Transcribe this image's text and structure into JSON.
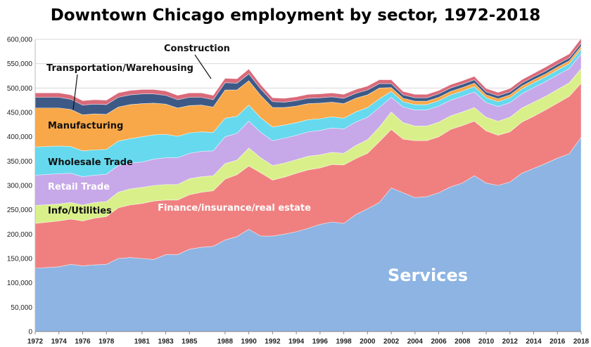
{
  "chart_data": {
    "type": "area",
    "title": "Downtown Chicago employment by sector, 1972-2018",
    "xlabel": "",
    "ylabel": "",
    "ylim": [
      0,
      600000
    ],
    "y_ticks": [
      "0",
      "50,000",
      "100,000",
      "150,000",
      "200,000",
      "250,000",
      "300,000",
      "350,000",
      "400,000",
      "450,000",
      "500,000",
      "550,000",
      "600,000"
    ],
    "x_tick_labels": [
      "1972",
      "1974",
      "1976",
      "1978",
      "1981",
      "1983",
      "1985",
      "1988",
      "1990",
      "1992",
      "1994",
      "1996",
      "1998",
      "2000",
      "2002",
      "2004",
      "2006",
      "2008",
      "2010",
      "2012",
      "2014",
      "2016",
      "2018"
    ],
    "grid": true,
    "stacked": true,
    "x": [
      1972,
      1974,
      1975,
      1976,
      1977,
      1978,
      1979,
      1980,
      1981,
      1982,
      1983,
      1984,
      1985,
      1986,
      1987,
      1988,
      1989,
      1990,
      1991,
      1992,
      1993,
      1994,
      1995,
      1996,
      1997,
      1998,
      1999,
      2000,
      2001,
      2002,
      2003,
      2004,
      2005,
      2006,
      2007,
      2008,
      2009,
      2010,
      2011,
      2012,
      2013,
      2014,
      2015,
      2016,
      2017,
      2018
    ],
    "series": [
      {
        "name": "Services",
        "color": "#8db4e2",
        "values": [
          130000,
          133000,
          138000,
          135000,
          137000,
          138000,
          150000,
          152000,
          150000,
          148000,
          158000,
          158000,
          169000,
          173000,
          175000,
          188000,
          195000,
          210000,
          196000,
          196000,
          200000,
          205000,
          212000,
          220000,
          225000,
          222000,
          240000,
          252000,
          265000,
          295000,
          285000,
          275000,
          277000,
          285000,
          297000,
          305000,
          320000,
          305000,
          300000,
          307000,
          325000,
          335000,
          345000,
          356000,
          365000,
          399000
        ]
      },
      {
        "name": "Finance/insurance/real estate",
        "color": "#f08080",
        "values": [
          92000,
          94000,
          93000,
          92000,
          96000,
          98000,
          104000,
          108000,
          113000,
          120000,
          112000,
          112000,
          112000,
          113000,
          114000,
          125000,
          127000,
          130000,
          130000,
          115000,
          117000,
          120000,
          120000,
          116000,
          118000,
          120000,
          115000,
          114000,
          125000,
          120000,
          110000,
          117000,
          115000,
          115000,
          118000,
          118000,
          112000,
          107000,
          103000,
          103000,
          105000,
          107000,
          110000,
          113000,
          118000,
          111000
        ]
      },
      {
        "name": "Info/Utilities",
        "color": "#d9f08a",
        "values": [
          37000,
          35000,
          34000,
          33000,
          32000,
          31000,
          32000,
          33000,
          33000,
          32000,
          32000,
          32000,
          33000,
          32000,
          31000,
          32000,
          30000,
          37000,
          31000,
          30000,
          29000,
          28000,
          28000,
          27000,
          25000,
          24000,
          27000,
          28000,
          30000,
          36000,
          34000,
          30000,
          30000,
          30000,
          28000,
          28000,
          28000,
          28000,
          29000,
          30000,
          29000,
          29000,
          28000,
          28000,
          28000,
          30000
        ]
      },
      {
        "name": "Retail Trade",
        "color": "#c7a8e8",
        "values": [
          62000,
          62000,
          60000,
          58000,
          56000,
          56000,
          55000,
          53000,
          52000,
          54000,
          55000,
          55000,
          52000,
          52000,
          51000,
          55000,
          55000,
          55000,
          52000,
          51000,
          51000,
          50000,
          50000,
          50000,
          50000,
          50000,
          48000,
          46000,
          40000,
          30000,
          32000,
          33000,
          33000,
          33000,
          32000,
          32000,
          32000,
          30000,
          30000,
          30000,
          29000,
          30000,
          30000,
          30000,
          29000,
          30000
        ]
      },
      {
        "name": "Wholesale Trade",
        "color": "#66d9ee",
        "values": [
          58000,
          57000,
          55000,
          53000,
          52000,
          51000,
          50000,
          50000,
          52000,
          50000,
          48000,
          44000,
          42000,
          40000,
          38000,
          38000,
          35000,
          33000,
          30000,
          28000,
          27000,
          26000,
          25000,
          24000,
          23000,
          22000,
          21000,
          20000,
          18000,
          12000,
          11000,
          11000,
          11000,
          11000,
          11000,
          11000,
          11000,
          10000,
          10000,
          10000,
          10000,
          10000,
          10000,
          10000,
          10000,
          10000
        ]
      },
      {
        "name": "Manufacturing",
        "color": "#f8a848",
        "values": [
          80000,
          78000,
          76000,
          74000,
          74000,
          72000,
          70000,
          70000,
          68000,
          65000,
          62000,
          58000,
          56000,
          55000,
          52000,
          58000,
          54000,
          50000,
          46000,
          40000,
          36000,
          34000,
          33000,
          32000,
          30000,
          30000,
          28000,
          26000,
          22000,
          8000,
          7000,
          7000,
          7000,
          7000,
          7000,
          7000,
          7000,
          6000,
          6000,
          6000,
          6000,
          6000,
          6000,
          6000,
          6000,
          6000
        ]
      },
      {
        "name": "Transportation/Warehousing",
        "color": "#3d5a87",
        "values": [
          22000,
          22000,
          21000,
          20000,
          20000,
          20000,
          20000,
          20000,
          20000,
          19000,
          18000,
          17000,
          17000,
          16000,
          15000,
          15000,
          14000,
          14000,
          13000,
          12000,
          11000,
          11000,
          11000,
          11000,
          11000,
          11000,
          10000,
          10000,
          9000,
          8000,
          7000,
          7000,
          7000,
          7000,
          7000,
          7000,
          7000,
          6000,
          6000,
          6000,
          6000,
          6000,
          6000,
          6000,
          6000,
          6000
        ]
      },
      {
        "name": "Construction",
        "color": "#d96a7a",
        "values": [
          9000,
          9000,
          9000,
          9000,
          9000,
          9000,
          9000,
          9000,
          9000,
          9000,
          9000,
          9000,
          9000,
          9000,
          9000,
          9000,
          9000,
          10000,
          9000,
          8000,
          8000,
          8000,
          8000,
          8000,
          8000,
          8000,
          8000,
          8000,
          8000,
          8000,
          7000,
          7000,
          7000,
          7000,
          7000,
          7000,
          7000,
          7000,
          7000,
          7000,
          7000,
          7000,
          8000,
          8000,
          8000,
          10000
        ]
      }
    ]
  }
}
